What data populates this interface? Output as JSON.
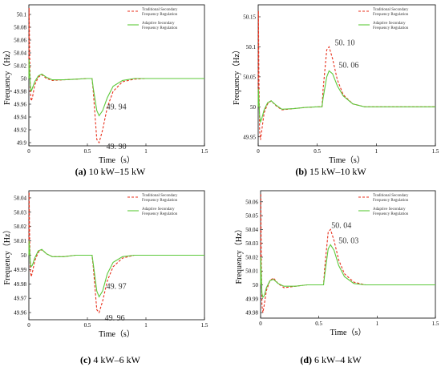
{
  "panels": [
    {
      "caption": {
        "tag": "(a)",
        "text": "10 kW–15 kW"
      },
      "chart_data": {
        "type": "line",
        "xlabel": "Time（s）",
        "ylabel": "Frequency（Hz）",
        "xlim": [
          0,
          1.5
        ],
        "ylim": [
          49.895,
          50.115
        ],
        "xticks": [
          "0",
          "0.5",
          "1",
          "1.5"
        ],
        "yticks": [
          "49.9",
          "49.92",
          "49.94",
          "49.96",
          "49.98",
          "50",
          "50.02",
          "50.04",
          "50.06",
          "50.08",
          "50.1"
        ],
        "legend_position": "top-right",
        "series": [
          {
            "name": "Traditional Secondary Frequency Regulation",
            "color": "#e8301c",
            "dash": true,
            "x": [
              0,
              0.002,
              0.006,
              0.012,
              0.02,
              0.03,
              0.05,
              0.08,
              0.11,
              0.15,
              0.2,
              0.3,
              0.4,
              0.5,
              0.54,
              0.55,
              0.58,
              0.6,
              0.63,
              0.67,
              0.72,
              0.8,
              0.9,
              1.0,
              1.2,
              1.5
            ],
            "y": [
              50.0,
              50.11,
              50.05,
              49.98,
              49.965,
              49.97,
              49.99,
              50.002,
              50.006,
              50.0,
              49.997,
              49.998,
              49.999,
              50.0,
              50.0,
              49.98,
              49.905,
              49.9,
              49.92,
              49.955,
              49.98,
              49.995,
              49.999,
              50.0,
              50.0,
              50.0
            ]
          },
          {
            "name": "Adaptive Secondary Frequency Regulation",
            "color": "#5cc93a",
            "dash": false,
            "x": [
              0,
              0.002,
              0.006,
              0.012,
              0.02,
              0.03,
              0.05,
              0.08,
              0.11,
              0.15,
              0.2,
              0.3,
              0.4,
              0.5,
              0.54,
              0.55,
              0.58,
              0.6,
              0.63,
              0.67,
              0.72,
              0.8,
              0.9,
              1.0,
              1.2,
              1.5
            ],
            "y": [
              50.0,
              50.03,
              50.01,
              49.99,
              49.98,
              49.985,
              49.995,
              50.004,
              50.007,
              50.002,
              49.998,
              49.998,
              49.999,
              50.0,
              50.0,
              49.985,
              49.95,
              49.942,
              49.95,
              49.97,
              49.988,
              49.997,
              50.0,
              50.0,
              50.0,
              50.0
            ]
          }
        ],
        "annotations": [
          {
            "text": "49. 94",
            "x": 0.6,
            "y": 49.942
          },
          {
            "text": "49. 90",
            "x": 0.6,
            "y": 49.9
          }
        ]
      }
    },
    {
      "caption": {
        "tag": "(b)",
        "text": "15 kW–10 kW"
      },
      "chart_data": {
        "type": "line",
        "xlabel": "Time（s）",
        "ylabel": "Frequency（Hz）",
        "xlim": [
          0,
          1.5
        ],
        "ylim": [
          49.935,
          50.17
        ],
        "xticks": [
          "0",
          "0.5",
          "1",
          "1.5"
        ],
        "yticks": [
          "49.95",
          "50",
          "50.05",
          "50.1",
          "50.15"
        ],
        "legend_position": "top-right",
        "series": [
          {
            "name": "Traditional Secondary Frequency Regulation",
            "color": "#e8301c",
            "dash": true,
            "x": [
              0,
              0.002,
              0.006,
              0.012,
              0.02,
              0.03,
              0.05,
              0.08,
              0.11,
              0.15,
              0.2,
              0.3,
              0.4,
              0.5,
              0.54,
              0.55,
              0.58,
              0.6,
              0.63,
              0.67,
              0.72,
              0.8,
              0.9,
              1.0,
              1.2,
              1.5
            ],
            "y": [
              50.0,
              50.16,
              50.05,
              49.96,
              49.945,
              49.96,
              49.99,
              50.005,
              50.01,
              50.002,
              49.995,
              49.997,
              49.999,
              50.0,
              50.0,
              50.03,
              50.095,
              50.1,
              50.08,
              50.045,
              50.02,
              50.005,
              50.0,
              50.0,
              50.0,
              50.0
            ]
          },
          {
            "name": "Adaptive Secondary Frequency Regulation",
            "color": "#5cc93a",
            "dash": false,
            "x": [
              0,
              0.002,
              0.006,
              0.012,
              0.02,
              0.03,
              0.05,
              0.08,
              0.11,
              0.15,
              0.2,
              0.3,
              0.4,
              0.5,
              0.54,
              0.55,
              0.58,
              0.6,
              0.63,
              0.67,
              0.72,
              0.8,
              0.9,
              1.0,
              1.2,
              1.5
            ],
            "y": [
              50.0,
              50.03,
              50.01,
              49.985,
              49.975,
              49.98,
              49.995,
              50.007,
              50.01,
              50.003,
              49.996,
              49.997,
              49.999,
              50.0,
              50.0,
              50.015,
              50.05,
              50.06,
              50.055,
              50.035,
              50.018,
              50.005,
              50.0,
              50.0,
              50.0,
              50.0
            ]
          }
        ],
        "annotations": [
          {
            "text": "50. 10",
            "x": 0.58,
            "y": 50.1
          },
          {
            "text": "50. 06",
            "x": 0.6,
            "y": 50.06
          }
        ]
      }
    },
    {
      "caption": {
        "tag": "(c)",
        "text": "4 kW–6 kW"
      },
      "chart_data": {
        "type": "line",
        "xlabel": "Time（s）",
        "ylabel": "Frequency（Hz）",
        "xlim": [
          0,
          1.5
        ],
        "ylim": [
          49.955,
          50.045
        ],
        "xticks": [
          "0",
          "0.5",
          "1",
          "1.5"
        ],
        "yticks": [
          "49.96",
          "49.97",
          "49.98",
          "49.99",
          "50",
          "50.01",
          "50.02",
          "50.03",
          "50.04"
        ],
        "legend_position": "top-right",
        "series": [
          {
            "name": "Traditional Secondary Frequency Regulation",
            "color": "#e8301c",
            "dash": true,
            "x": [
              0,
              0.002,
              0.006,
              0.012,
              0.02,
              0.03,
              0.05,
              0.08,
              0.11,
              0.15,
              0.2,
              0.3,
              0.4,
              0.5,
              0.54,
              0.55,
              0.58,
              0.6,
              0.63,
              0.67,
              0.72,
              0.8,
              0.9,
              1.0,
              1.2,
              1.5
            ],
            "y": [
              50.0,
              50.044,
              50.015,
              49.99,
              49.985,
              49.988,
              49.996,
              50.002,
              50.004,
              50.001,
              49.999,
              49.999,
              50.0,
              50.0,
              50.0,
              49.992,
              49.962,
              49.96,
              49.968,
              49.982,
              49.992,
              49.998,
              50.0,
              50.0,
              50.0,
              50.0
            ]
          },
          {
            "name": "Adaptive Secondary Frequency Regulation",
            "color": "#5cc93a",
            "dash": false,
            "x": [
              0,
              0.002,
              0.006,
              0.012,
              0.02,
              0.03,
              0.05,
              0.08,
              0.11,
              0.15,
              0.2,
              0.3,
              0.4,
              0.5,
              0.54,
              0.55,
              0.58,
              0.6,
              0.63,
              0.67,
              0.72,
              0.8,
              0.9,
              1.0,
              1.2,
              1.5
            ],
            "y": [
              50.0,
              50.01,
              50.004,
              49.995,
              49.992,
              49.993,
              49.998,
              50.003,
              50.004,
              50.001,
              49.999,
              49.999,
              50.0,
              50.0,
              50.0,
              49.994,
              49.975,
              49.971,
              49.975,
              49.987,
              49.995,
              49.999,
              50.0,
              50.0,
              50.0,
              50.0
            ]
          }
        ],
        "annotations": [
          {
            "text": "49. 97",
            "x": 0.6,
            "y": 49.971
          },
          {
            "text": "49. 96",
            "x": 0.58,
            "y": 49.96
          }
        ]
      }
    },
    {
      "caption": {
        "tag": "(d)",
        "text": "6 kW–4 kW"
      },
      "chart_data": {
        "type": "line",
        "xlabel": "Time（s）",
        "ylabel": "Frequency（Hz）",
        "xlim": [
          0,
          1.5
        ],
        "ylim": [
          49.976,
          50.068
        ],
        "xticks": [
          "0",
          "0.5",
          "1",
          "1.5"
        ],
        "yticks": [
          "49.98",
          "49.99",
          "50",
          "50.01",
          "50.02",
          "50.03",
          "50.04",
          "50.05",
          "50.06"
        ],
        "legend_position": "top-right",
        "series": [
          {
            "name": "Traditional Secondary Frequency Regulation",
            "color": "#e8301c",
            "dash": true,
            "x": [
              0,
              0.002,
              0.006,
              0.012,
              0.02,
              0.03,
              0.05,
              0.08,
              0.11,
              0.15,
              0.2,
              0.3,
              0.4,
              0.5,
              0.54,
              0.55,
              0.58,
              0.6,
              0.63,
              0.67,
              0.72,
              0.8,
              0.9,
              1.0,
              1.2,
              1.5
            ],
            "y": [
              50.0,
              50.066,
              50.02,
              49.985,
              49.98,
              49.985,
              49.996,
              50.003,
              50.005,
              50.001,
              49.998,
              49.999,
              50.0,
              50.0,
              50.0,
              50.012,
              50.038,
              50.04,
              50.032,
              50.018,
              50.008,
              50.002,
              50.0,
              50.0,
              50.0,
              50.0
            ]
          },
          {
            "name": "Adaptive Secondary Frequency Regulation",
            "color": "#5cc93a",
            "dash": false,
            "x": [
              0,
              0.002,
              0.006,
              0.012,
              0.02,
              0.03,
              0.05,
              0.08,
              0.11,
              0.15,
              0.2,
              0.3,
              0.4,
              0.5,
              0.54,
              0.55,
              0.58,
              0.6,
              0.63,
              0.67,
              0.72,
              0.8,
              0.9,
              1.0,
              1.2,
              1.5
            ],
            "y": [
              50.0,
              50.02,
              50.006,
              49.994,
              49.991,
              49.992,
              49.998,
              50.003,
              50.004,
              50.001,
              49.999,
              49.999,
              50.0,
              50.0,
              50.0,
              50.007,
              50.026,
              50.029,
              50.025,
              50.014,
              50.006,
              50.001,
              50.0,
              50.0,
              50.0,
              50.0
            ]
          }
        ],
        "annotations": [
          {
            "text": "50. 04",
            "x": 0.58,
            "y": 50.04
          },
          {
            "text": "50. 03",
            "x": 0.6,
            "y": 50.029
          }
        ]
      }
    }
  ],
  "colors": {
    "axis": "#000000",
    "grid_tick": "#000000",
    "traditional": "#e8301c",
    "adaptive": "#5cc93a"
  }
}
